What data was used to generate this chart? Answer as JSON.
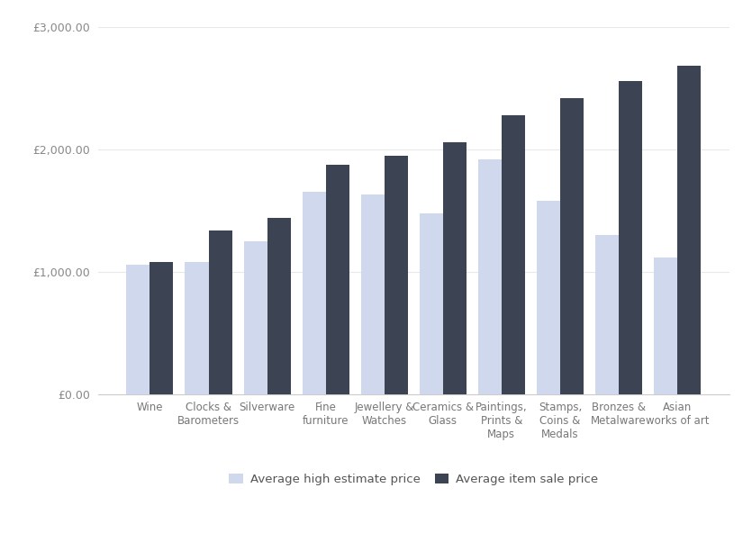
{
  "categories": [
    "Wine",
    "Clocks &\nBarometers",
    "Silverware",
    "Fine\nfurniture",
    "Jewellery &\nWatches",
    "Ceramics &\nGlass",
    "Paintings,\nPrints &\nMaps",
    "Stamps,\nCoins &\nMedals",
    "Bronzes &\nMetalware",
    "Asian\nworks of art"
  ],
  "avg_high_estimate": [
    1060,
    1080,
    1250,
    1650,
    1630,
    1480,
    1920,
    1580,
    1300,
    1120
  ],
  "avg_sale_price": [
    1080,
    1340,
    1440,
    1870,
    1950,
    2060,
    2280,
    2420,
    2560,
    2680
  ],
  "estimate_color": "#d0d8ee",
  "sale_color": "#3c4454",
  "ylim": [
    0,
    3000
  ],
  "yticks": [
    0,
    1000,
    2000,
    3000
  ],
  "ytick_labels": [
    "£0.00",
    "£1,000.00",
    "£2,000.00",
    "£3,000.00"
  ],
  "legend_labels": [
    "Average high estimate price",
    "Average item sale price"
  ],
  "background_color": "#ffffff",
  "grid_color": "#e8e8e8",
  "bar_width": 0.4
}
